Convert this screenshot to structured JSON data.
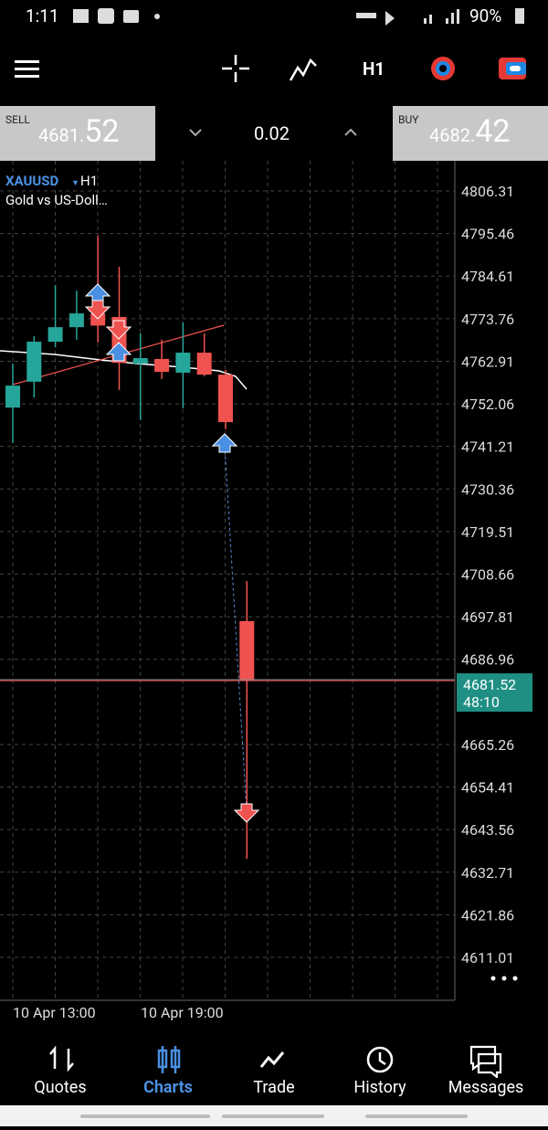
{
  "status": {
    "time": "1:11",
    "battery": "90%"
  },
  "toolbar": {
    "timeframe": "H1"
  },
  "prices": {
    "sell_label": "SELL",
    "sell_main": "4681.",
    "sell_frac": "52",
    "lot": "0.02",
    "buy_label": "BUY",
    "buy_main": "4682.",
    "buy_frac": "42"
  },
  "chart": {
    "symbol": "XAUUSD",
    "timeframe": "H1",
    "description": "Gold vs US-Doll…",
    "ylim": [
      4600.07,
      4813.53
    ],
    "yticks": [
      4806.31,
      4795.46,
      4784.61,
      4773.76,
      4762.91,
      4752.06,
      4741.21,
      4730.36,
      4719.51,
      4708.66,
      4697.81,
      4686.96,
      4665.26,
      4654.41,
      4643.56,
      4632.71,
      4621.86,
      4611.01
    ],
    "up_color": "#26a69a",
    "down_color": "#ef5350",
    "candles": [
      {
        "open": 4751.1,
        "high": 4762.3,
        "low": 4742.1,
        "close": 4756.7
      },
      {
        "open": 4757.7,
        "high": 4769.3,
        "low": 4753.7,
        "close": 4767.9
      },
      {
        "open": 4767.9,
        "high": 4782.3,
        "low": 4766.5,
        "close": 4771.6
      },
      {
        "open": 4771.6,
        "high": 4780.9,
        "low": 4768.4,
        "close": 4775.1
      },
      {
        "open": 4775.1,
        "high": 4794.9,
        "low": 4767.7,
        "close": 4772.0
      },
      {
        "open": 4774.2,
        "high": 4787.0,
        "low": 4755.6,
        "close": 4762.5
      },
      {
        "open": 4762.3,
        "high": 4770.0,
        "low": 4747.9,
        "close": 4763.7
      },
      {
        "open": 4763.5,
        "high": 4768.4,
        "low": 4758.4,
        "close": 4760.2
      },
      {
        "open": 4760.0,
        "high": 4772.8,
        "low": 4750.9,
        "close": 4765.1
      },
      {
        "open": 4765.1,
        "high": 4770.0,
        "low": 4759.1,
        "close": 4759.5
      },
      {
        "open": 4759.5,
        "high": 4760.7,
        "low": 4745.6,
        "close": 4747.4
      },
      {
        "open": 4696.7,
        "high": 4706.9,
        "low": 4636.1,
        "close": 4681.52
      }
    ],
    "current_price": 4681.52,
    "countdown": "48:10",
    "xlabels": [
      "10 Apr 13:00",
      "10 Apr 19:00"
    ]
  },
  "nav": [
    "Quotes",
    "Charts",
    "Trade",
    "History",
    "Messages"
  ]
}
